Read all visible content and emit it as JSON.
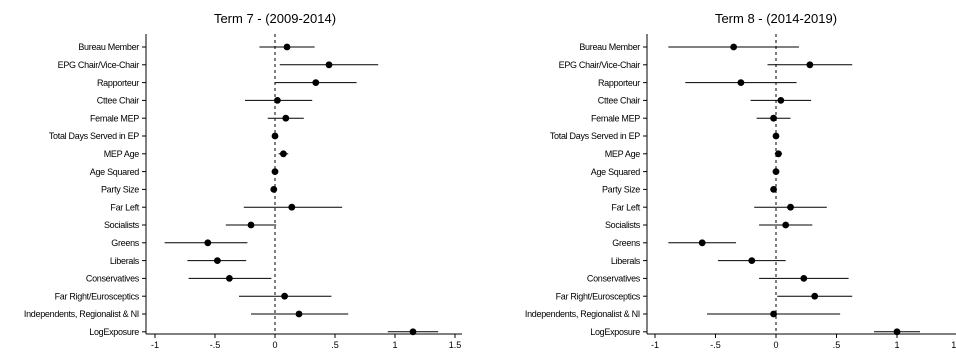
{
  "chart_data": [
    {
      "type": "scatter",
      "title": "Term 7 - (2009-2014)",
      "xlabel": "",
      "ylabel": "",
      "xlim": [
        -1.1,
        1.55
      ],
      "x_ticks": [
        -1,
        -0.5,
        0,
        0.5,
        1,
        1.5
      ],
      "x_tick_labels": [
        "-1",
        "-.5",
        "0",
        ".5",
        "1",
        "1.5"
      ],
      "reference_line": 0,
      "categories": [
        "Bureau Member",
        "EPG Chair/Vice-Chair",
        "Rapporteur",
        "Cttee Chair",
        "Female MEP",
        "Total Days Served in EP",
        "MEP Age",
        "Age Squared",
        "Party Size",
        "Far Left",
        "Socialists",
        "Greens",
        "Liberals",
        "Conservatives",
        "Far Right/Eurosceptics",
        "Independents, Regionalist & NI",
        "LogExposure"
      ],
      "estimates": [
        0.1,
        0.45,
        0.34,
        0.02,
        0.09,
        0.0,
        0.07,
        0.0,
        -0.01,
        0.14,
        -0.2,
        -0.56,
        -0.48,
        -0.38,
        0.08,
        0.2,
        1.15
      ],
      "ci_low": [
        -0.13,
        0.04,
        0.0,
        -0.25,
        -0.06,
        -0.01,
        0.03,
        -0.01,
        -0.03,
        -0.26,
        -0.41,
        -0.92,
        -0.73,
        -0.72,
        -0.3,
        -0.2,
        0.94
      ],
      "ci_high": [
        0.33,
        0.86,
        0.68,
        0.31,
        0.24,
        0.01,
        0.11,
        0.01,
        0.01,
        0.56,
        0.01,
        -0.23,
        -0.24,
        -0.03,
        0.47,
        0.61,
        1.36
      ],
      "grid": false
    },
    {
      "type": "scatter",
      "title": "Term 8 - (2014-2019)",
      "xlabel": "",
      "ylabel": "",
      "xlim": [
        -1.1,
        1.55
      ],
      "x_ticks": [
        -1,
        -0.5,
        0,
        0.5,
        1,
        1.5
      ],
      "x_tick_labels": [
        "-1",
        "-.5",
        "0",
        ".5",
        "1",
        "1.5"
      ],
      "reference_line": 0,
      "categories": [
        "Bureau Member",
        "EPG Chair/Vice-Chair",
        "Rapporteur",
        "Cttee Chair",
        "Female MEP",
        "Total Days Served in EP",
        "MEP Age",
        "Age Squared",
        "Party Size",
        "Far Left",
        "Socialists",
        "Greens",
        "Liberals",
        "Conservatives",
        "Far Right/Eurosceptics",
        "Independents, Regionalist & NI",
        "LogExposure"
      ],
      "estimates": [
        -0.35,
        0.28,
        -0.29,
        0.04,
        -0.02,
        0.0,
        0.02,
        0.0,
        -0.02,
        0.12,
        0.08,
        -0.61,
        -0.2,
        0.23,
        0.32,
        -0.02,
        1.0
      ],
      "ci_low": [
        -0.89,
        -0.07,
        -0.75,
        -0.21,
        -0.16,
        -0.02,
        -0.01,
        -0.01,
        -0.04,
        -0.18,
        -0.14,
        -0.89,
        -0.48,
        -0.14,
        0.01,
        -0.57,
        0.81
      ],
      "ci_high": [
        0.19,
        0.63,
        0.17,
        0.29,
        0.12,
        0.02,
        0.05,
        0.01,
        0.0,
        0.42,
        0.3,
        -0.33,
        0.08,
        0.6,
        0.63,
        0.53,
        1.19
      ],
      "grid": false
    }
  ]
}
